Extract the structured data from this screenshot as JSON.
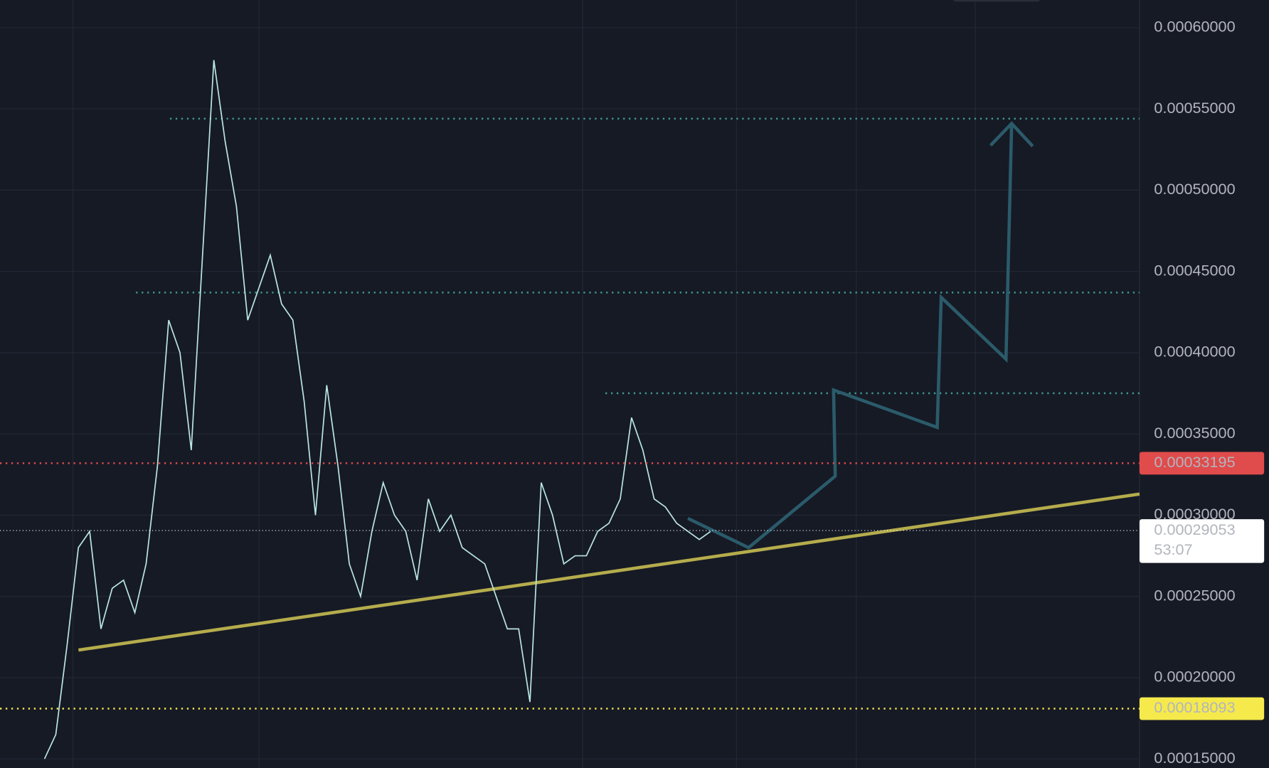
{
  "chart_data": {
    "type": "line",
    "ylim": [
      0.0001444,
      0.000617
    ],
    "yticks": [
      {
        "value": 0.0006,
        "label": "0.00060000"
      },
      {
        "value": 0.00055,
        "label": "0.00055000"
      },
      {
        "value": 0.0005,
        "label": "0.00050000"
      },
      {
        "value": 0.00045,
        "label": "0.00045000"
      },
      {
        "value": 0.0004,
        "label": "0.00040000"
      },
      {
        "value": 0.00035,
        "label": "0.00035000"
      },
      {
        "value": 0.0003,
        "label": "0.00030000"
      },
      {
        "value": 0.00025,
        "label": "0.00025000"
      },
      {
        "value": 0.0002,
        "label": "0.00020000"
      },
      {
        "value": 0.00015,
        "label": "0.00015000"
      }
    ],
    "grid": true,
    "series": [
      {
        "color": "#b9e6e0",
        "values": [
          0.00015,
          0.000165,
          0.00022,
          0.00028,
          0.00029,
          0.00023,
          0.000255,
          0.00026,
          0.00024,
          0.00027,
          0.00033,
          0.00042,
          0.0004,
          0.00034,
          0.00046,
          0.00058,
          0.00053,
          0.00049,
          0.00042,
          0.00044,
          0.00046,
          0.00043,
          0.00042,
          0.00037,
          0.0003,
          0.00038,
          0.00033,
          0.00027,
          0.00025,
          0.00029,
          0.00032,
          0.0003,
          0.00029,
          0.00026,
          0.00031,
          0.00029,
          0.0003,
          0.00028,
          0.000275,
          0.00027,
          0.00025,
          0.00023,
          0.00023,
          0.000185,
          0.00032,
          0.0003,
          0.00027,
          0.000275,
          0.000275,
          0.00029,
          0.000295,
          0.00031,
          0.00036,
          0.00034,
          0.00031,
          0.000305,
          0.000295,
          0.00029,
          0.000285,
          0.00029
        ]
      },
      {
        "color": "#2b5b6a",
        "values": [
          0.000298,
          0.00028,
          0.000324,
          0.000377,
          0.000354,
          0.000434,
          0.000396,
          0.000541
        ]
      }
    ],
    "trendline": {
      "color": "#b5ac4c",
      "values": [
        0.000217,
        0.000313
      ]
    },
    "levels": [
      {
        "value": 0.000544,
        "color": "#3f9a92"
      },
      {
        "value": 0.000437,
        "color": "#3f9a92"
      },
      {
        "value": 0.000375,
        "color": "#3f9a92"
      }
    ],
    "price_lines": [
      {
        "value": 0.00033195,
        "color": "#e04b4b"
      },
      {
        "value": 0.00018093,
        "color": "#f5e94c"
      },
      {
        "value": 0.00029053,
        "color": "#ffffff",
        "countdown": "53:07"
      }
    ]
  }
}
